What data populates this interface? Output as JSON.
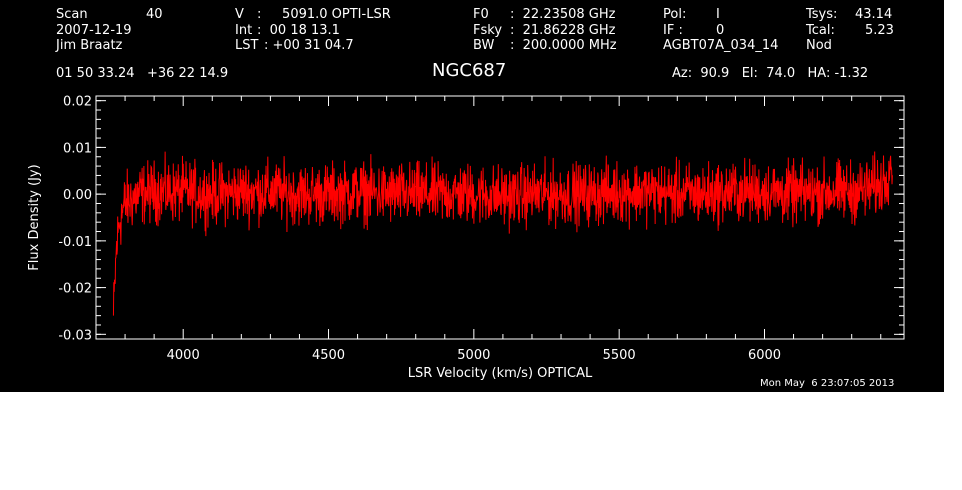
{
  "header": {
    "row1": [
      {
        "key": "Scan",
        "value": "40"
      },
      {
        "key": "V",
        "value": ":     5091.0 OPTI-LSR"
      },
      {
        "key": "F0",
        "value": ":  22.23508 GHz"
      },
      {
        "key": "Pol:",
        "value": "I"
      },
      {
        "key": "Tsys:",
        "value": "43.14"
      }
    ],
    "row2": [
      {
        "key": "2007-12-19",
        "value": ""
      },
      {
        "key": "Int",
        "value": ":  00 18 13.1"
      },
      {
        "key": "Fsky",
        "value": ":  21.86228 GHz"
      },
      {
        "key": "IF :",
        "value": "0"
      },
      {
        "key": "Tcal:",
        "value": "5.23"
      }
    ],
    "row3": [
      {
        "key": "Jim Braatz",
        "value": ""
      },
      {
        "key": "LST",
        "value": ": +00 31 04.7"
      },
      {
        "key": "BW",
        "value": ":  200.0000 MHz"
      },
      {
        "key": "AGBT07A_034_14",
        "value": ""
      },
      {
        "key": "Nod",
        "value": ""
      }
    ],
    "coords": "01 50 33.24   +36 22 14.9",
    "source": "NGC687",
    "pointing": "Az:  90.9   El:  74.0   HA: -1.32"
  },
  "footer_timestamp": "Mon May  6 23:07:05 2013",
  "colors": {
    "background": "#000000",
    "axes": "#ffffff",
    "series": "#ff0000"
  },
  "chart_data": {
    "type": "line",
    "title": "NGC687",
    "xlabel": "LSR Velocity (km/s) OPTICAL",
    "ylabel": "Flux Density (Jy)",
    "xlim": [
      3700,
      6480
    ],
    "ylim": [
      -0.031,
      0.021
    ],
    "xticks": [
      4000,
      4500,
      5000,
      5500,
      6000
    ],
    "xtick_labels": [
      "4000",
      "4500",
      "5000",
      "5500",
      "6000"
    ],
    "yticks": [
      -0.03,
      -0.02,
      -0.01,
      0.0,
      0.01,
      0.02
    ],
    "ytick_labels": [
      "-0.03",
      "-0.02",
      "-0.01",
      "0.00",
      "0.01",
      "0.02"
    ],
    "series": [
      {
        "x": [
          3760,
          3770,
          3780,
          3800,
          3850,
          3900,
          4000,
          4100,
          4200,
          4300,
          4400,
          4500,
          4600,
          4700,
          4800,
          4900,
          5000,
          5100,
          5200,
          5300,
          5400,
          5500,
          5600,
          5700,
          5800,
          5900,
          6000,
          6100,
          6200,
          6300,
          6350,
          6400,
          6420,
          6440
        ],
        "y": [
          -0.026,
          -0.012,
          -0.006,
          -0.002,
          0.0,
          0.0005,
          0.0005,
          0.0,
          0.0005,
          0.0005,
          0.0,
          0.0,
          0.0005,
          0.0,
          0.0,
          0.0,
          0.0,
          -0.0005,
          0.0,
          0.0,
          0.0,
          0.0005,
          0.0005,
          0.0,
          0.0,
          0.0005,
          0.0005,
          0.0,
          0.0005,
          0.0005,
          0.001,
          0.002,
          0.004,
          0.008
        ],
        "noise_amplitude_jy": 0.004
      }
    ]
  }
}
